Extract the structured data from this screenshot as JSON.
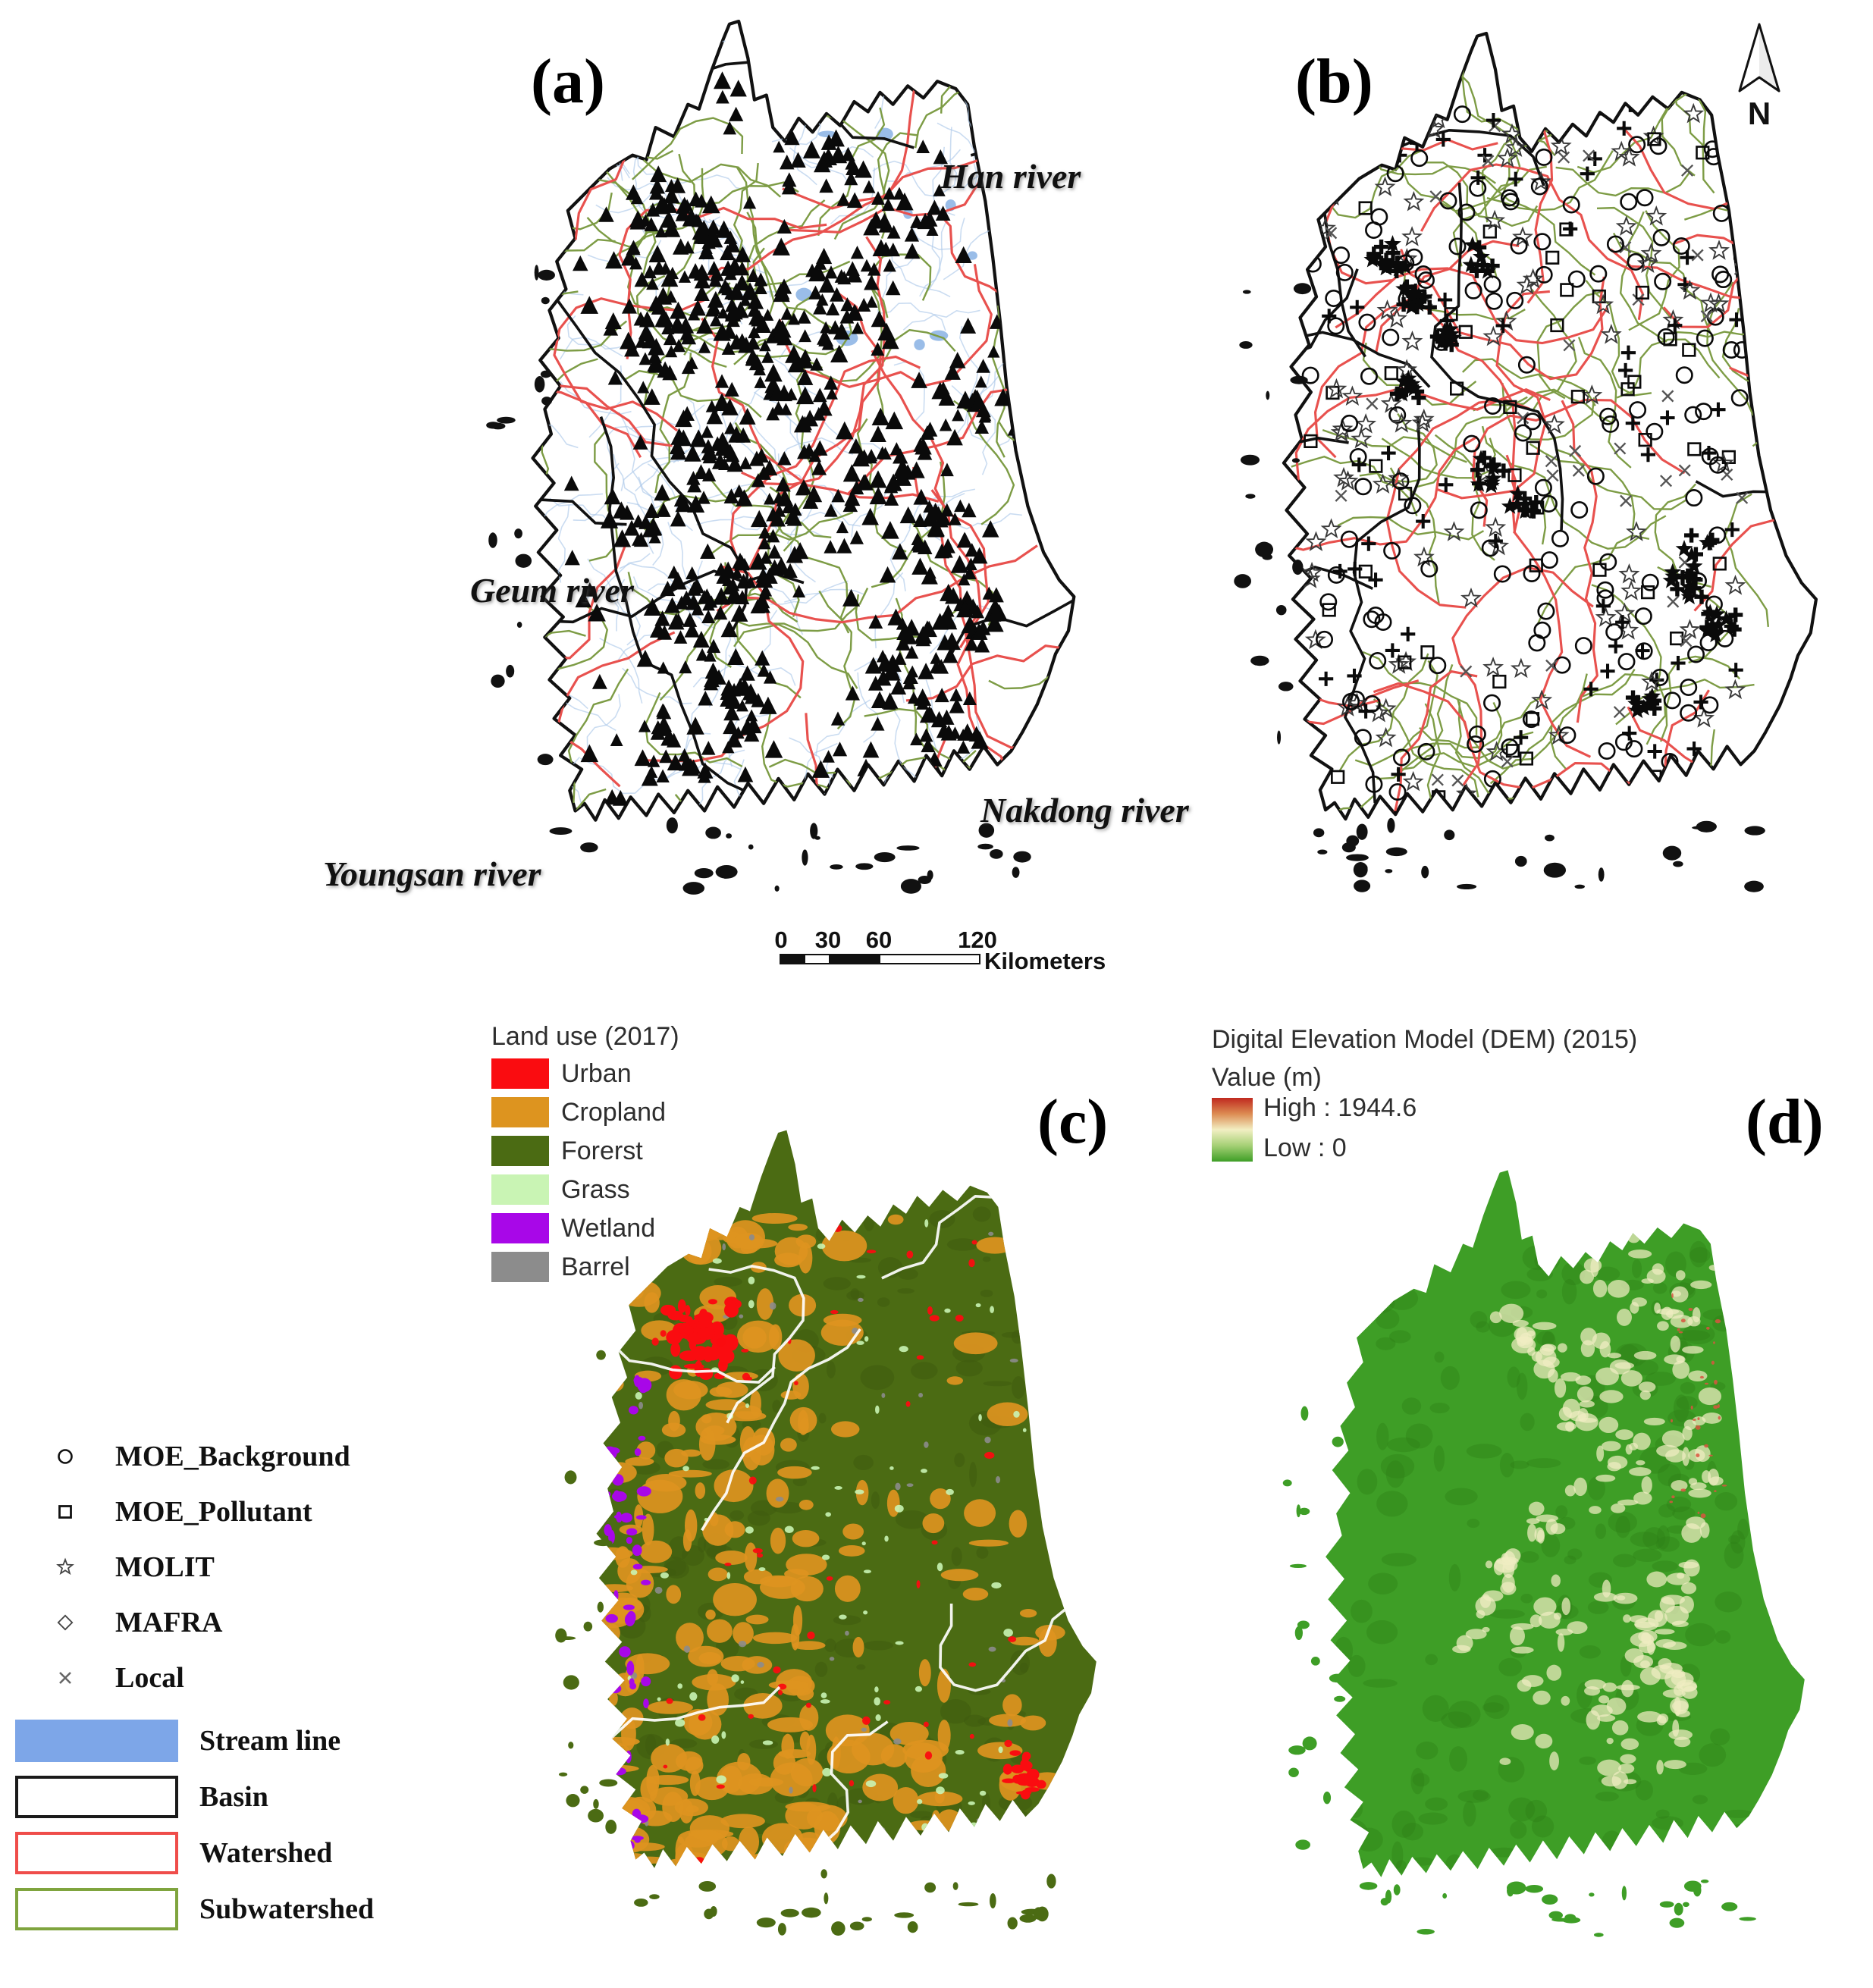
{
  "figure": {
    "panels": [
      {
        "id": "a",
        "label": "(a)"
      },
      {
        "id": "b",
        "label": "(b)"
      },
      {
        "id": "c",
        "label": "(c)"
      },
      {
        "id": "d",
        "label": "(d)"
      }
    ],
    "north_arrow_label": "N"
  },
  "rivers": {
    "han": "Han river",
    "geum": "Geum river",
    "nakdong": "Nakdong river",
    "youngsan": "Youngsan river"
  },
  "scalebar": {
    "ticks": [
      "0",
      "30",
      "60",
      "120"
    ],
    "unit": "Kilometers"
  },
  "station_legend": {
    "items": [
      {
        "symbol": "circle",
        "label": "MOE_Background"
      },
      {
        "symbol": "square",
        "label": "MOE_Pollutant"
      },
      {
        "symbol": "star",
        "label": "MOLIT"
      },
      {
        "symbol": "diamond",
        "label": "MAFRA"
      },
      {
        "symbol": "x",
        "label": "Local"
      }
    ],
    "areas": [
      {
        "style": "fill",
        "color": "#7da6e8",
        "label": "Stream line"
      },
      {
        "style": "outline",
        "color": "#1a1a1a",
        "label": "Basin"
      },
      {
        "style": "outline",
        "color": "#ef4d4a",
        "label": "Watershed"
      },
      {
        "style": "outline",
        "color": "#7fa43e",
        "label": "Subwatershed"
      }
    ]
  },
  "landuse_legend": {
    "title": "Land use (2017)",
    "items": [
      {
        "color": "#fa0c10",
        "label": "Urban"
      },
      {
        "color": "#dd941f",
        "label": "Cropland"
      },
      {
        "color": "#4b6b13",
        "label": "Forerst"
      },
      {
        "color": "#c9f4b4",
        "label": "Grass"
      },
      {
        "color": "#a807e8",
        "label": "Wetland"
      },
      {
        "color": "#8c8c8c",
        "label": "Barrel"
      }
    ]
  },
  "dem_legend": {
    "title": "Digital Elevation Model (DEM) (2015)",
    "subtitle": "Value (m)",
    "high_label": "High : 1944.6",
    "low_label": "Low : 0",
    "gradient": [
      "#c0291f",
      "#dc8b52",
      "#f2efc3",
      "#a5d075",
      "#3e9e26"
    ]
  },
  "map_colors": {
    "basin": "#111111",
    "watershed": "#e8514e",
    "subwatershed": "#7d9c45",
    "stream": "#aec9ea",
    "station_marker": "#0a0a0a",
    "dem_red_speck": "#d95540",
    "dem_pale": "#f0edc2"
  },
  "icons": {
    "moe_background": "open-circle",
    "moe_pollutant": "open-square",
    "molit": "open-star",
    "mafra": "open-diamond",
    "local": "x-cross",
    "north": "north-arrow"
  }
}
